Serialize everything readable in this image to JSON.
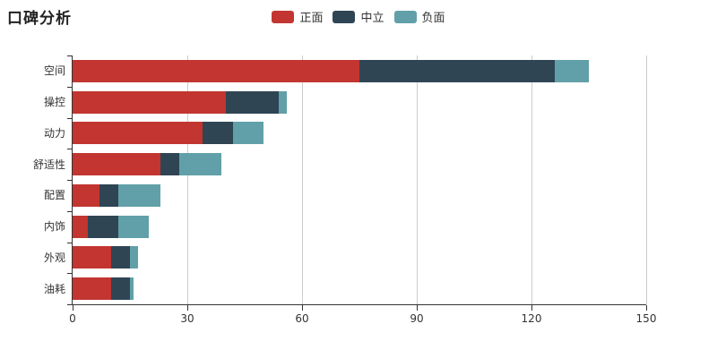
{
  "title": "口碑分析",
  "legend": {
    "items": [
      {
        "label": "正面",
        "color": "#c23531"
      },
      {
        "label": "中立",
        "color": "#2f4554"
      },
      {
        "label": "负面",
        "color": "#61a0a8"
      }
    ]
  },
  "chart_data": {
    "type": "bar",
    "orientation": "horizontal",
    "stacked": true,
    "title": "口碑分析",
    "xlabel": "",
    "ylabel": "",
    "categories": [
      "空间",
      "操控",
      "动力",
      "舒适性",
      "配置",
      "内饰",
      "外观",
      "油耗"
    ],
    "series": [
      {
        "name": "正面",
        "color": "#c23531",
        "values": [
          75,
          40,
          34,
          23,
          7,
          4,
          10,
          10
        ]
      },
      {
        "name": "中立",
        "color": "#2f4554",
        "values": [
          51,
          14,
          8,
          5,
          5,
          8,
          5,
          5
        ]
      },
      {
        "name": "负面",
        "color": "#61a0a8",
        "values": [
          9,
          2,
          8,
          11,
          11,
          8,
          2,
          1
        ]
      }
    ],
    "totals": [
      135,
      56,
      50,
      39,
      23,
      20,
      17,
      16
    ],
    "xlim": [
      0,
      150
    ],
    "x_ticks": [
      0,
      30,
      60,
      90,
      120,
      150
    ],
    "grid": true,
    "legend_position": "top-center",
    "axis_color": "#333333",
    "grid_color": "#cccccc",
    "background_color": "#ffffff"
  }
}
